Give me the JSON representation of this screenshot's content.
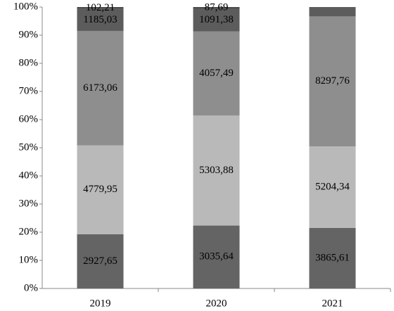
{
  "chart_data": {
    "type": "bar",
    "stacking": "percent",
    "categories": [
      "2019",
      "2020",
      "2021"
    ],
    "series": [
      {
        "color": "#646464",
        "values": [
          2927.65,
          3035.64,
          3865.61
        ],
        "value_labels": [
          "2927,65",
          "3035,64",
          "3865,61"
        ]
      },
      {
        "color": "#b9b9b9",
        "values": [
          4779.95,
          5303.88,
          5204.34
        ],
        "value_labels": [
          "4779,95",
          "5303,88",
          "5204,34"
        ]
      },
      {
        "color": "#8e8e8e",
        "values": [
          6173.06,
          4057.49,
          8297.76
        ],
        "value_labels": [
          "6173,06",
          "4057,49",
          "8297,76"
        ]
      },
      {
        "color": "#5c5c5c",
        "values": [
          1185.03,
          1091.38,
          600
        ],
        "value_labels": [
          "1185,03",
          "1091,38",
          null
        ]
      },
      {
        "color": "#4a4a4a",
        "values": [
          102.21,
          87.69,
          null
        ],
        "value_labels": [
          "102,21",
          "87,69",
          null
        ]
      }
    ],
    "ylim": [
      0,
      100
    ],
    "yticks": [
      {
        "value": 0,
        "label": "0%"
      },
      {
        "value": 10,
        "label": "10%"
      },
      {
        "value": 20,
        "label": "20%"
      },
      {
        "value": 30,
        "label": "30%"
      },
      {
        "value": 40,
        "label": "40%"
      },
      {
        "value": 50,
        "label": "50%"
      },
      {
        "value": 60,
        "label": "60%"
      },
      {
        "value": 70,
        "label": "70%"
      },
      {
        "value": 80,
        "label": "80%"
      },
      {
        "value": 90,
        "label": "90%"
      },
      {
        "value": 100,
        "label": "100%"
      }
    ],
    "grid": false
  }
}
